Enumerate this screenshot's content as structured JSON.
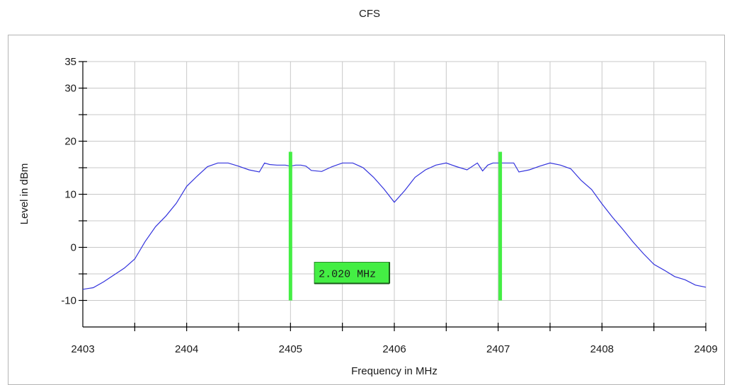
{
  "chart_data": {
    "type": "line",
    "title": "CFS",
    "xlabel": "Frequency in MHz",
    "ylabel": "Level in dBm",
    "xlim": [
      2403,
      2409
    ],
    "ylim": [
      -15,
      35
    ],
    "x_ticks": [
      2403,
      2404,
      2405,
      2406,
      2407,
      2408,
      2409
    ],
    "x_tick_labels": [
      "2403",
      "2404",
      "2405",
      "2406",
      "2407",
      "2408",
      "2409"
    ],
    "y_ticks": [
      35,
      30,
      20,
      10,
      0,
      -10
    ],
    "y_tick_labels": [
      "35",
      "30",
      "20",
      "10",
      "0",
      "-10"
    ],
    "x_grid": [
      2403.5,
      2404,
      2404.5,
      2405,
      2405.5,
      2406,
      2406.5,
      2407,
      2407.5,
      2408,
      2408.5,
      2409
    ],
    "y_grid": [
      -10,
      -5,
      0,
      5,
      10,
      15,
      20,
      25,
      30,
      35
    ],
    "grid": true,
    "series": [
      {
        "color": "#3333dd",
        "x": [
          2403,
          2403.1,
          2403.2,
          2403.3,
          2403.4,
          2403.5,
          2403.6,
          2403.7,
          2403.8,
          2403.9,
          2404,
          2404.1,
          2404.2,
          2404.3,
          2404.4,
          2404.5,
          2404.6,
          2404.7,
          2404.75,
          2404.8,
          2404.87,
          2404.95,
          2405,
          2405.05,
          2405.1,
          2405.15,
          2405.2,
          2405.3,
          2405.4,
          2405.5,
          2405.6,
          2405.7,
          2405.8,
          2405.9,
          2406,
          2406.1,
          2406.2,
          2406.3,
          2406.4,
          2406.5,
          2406.6,
          2406.7,
          2406.8,
          2406.85,
          2406.9,
          2406.95,
          2407,
          2407.05,
          2407.1,
          2407.15,
          2407.2,
          2407.3,
          2407.4,
          2407.5,
          2407.6,
          2407.7,
          2407.8,
          2407.9,
          2408,
          2408.1,
          2408.2,
          2408.3,
          2408.4,
          2408.5,
          2408.6,
          2408.7,
          2408.8,
          2408.9,
          2409
        ],
        "y": [
          -7.9,
          -7.6,
          -6.5,
          -5.2,
          -3.9,
          -2.2,
          1.1,
          3.9,
          5.9,
          8.3,
          11.5,
          13.4,
          15.2,
          15.9,
          15.9,
          15.3,
          14.6,
          14.2,
          15.9,
          15.6,
          15.5,
          15.5,
          15.3,
          15.5,
          15.5,
          15.3,
          14.5,
          14.3,
          15.2,
          15.9,
          15.9,
          15.0,
          13.2,
          11.0,
          8.5,
          10.7,
          13.2,
          14.6,
          15.5,
          15.9,
          15.2,
          14.6,
          15.9,
          14.4,
          15.5,
          15.9,
          15.9,
          15.9,
          15.9,
          15.9,
          14.2,
          14.6,
          15.3,
          15.9,
          15.5,
          14.8,
          12.6,
          10.9,
          8.2,
          5.7,
          3.4,
          1.0,
          -1.2,
          -3.2,
          -4.3,
          -5.5,
          -6.1,
          -7.1,
          -7.5
        ]
      }
    ],
    "markers": [
      {
        "x": 2405.0,
        "y_top": 18,
        "y_bottom": -10,
        "color": "#44ee44"
      },
      {
        "x": 2407.02,
        "y_top": 18,
        "y_bottom": -10,
        "color": "#44ee44"
      }
    ],
    "annotation": {
      "text": "2.020 MHz",
      "x": 2405.23,
      "y": -2.8,
      "fill": "#44ee44"
    }
  }
}
